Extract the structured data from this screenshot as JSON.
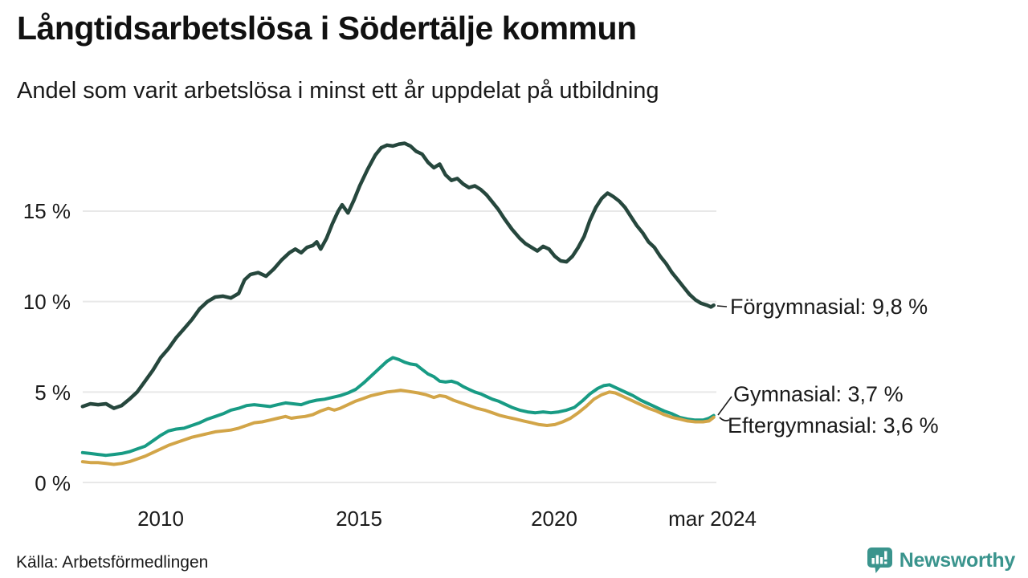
{
  "header": {
    "title": "Långtidsarbetslösa i Södertälje kommun",
    "subtitle": "Andel som varit arbetslösa i minst ett år uppdelat på utbildning"
  },
  "footer": {
    "source": "Källa: Arbetsförmedlingen",
    "brand": "Newsworthy"
  },
  "colors": {
    "forgymnasial": "#26473d",
    "gymnasial": "#189b84",
    "eftergymnasial": "#d2a548",
    "grid": "#e8e8e8",
    "text": "#1a1a1a",
    "brand_teal": "#3a948d"
  },
  "chart_data": {
    "type": "line",
    "title": "Långtidsarbetslösa i Södertälje kommun",
    "subtitle": "Andel som varit arbetslösa i minst ett år uppdelat på utbildning",
    "xlabel": "",
    "ylabel": "",
    "x_unit": "year (decimal), ends mars 2024",
    "xlim": [
      2008.0,
      2024.25
    ],
    "ylim": [
      0,
      19
    ],
    "grid": "horizontal-only",
    "legend_position": "end-of-line labels, right side",
    "yticks": [
      {
        "value": 0,
        "label": "0 %"
      },
      {
        "value": 5,
        "label": "5 %"
      },
      {
        "value": 10,
        "label": "10 %"
      },
      {
        "value": 15,
        "label": "15 %"
      }
    ],
    "xticks": [
      {
        "value": 2010,
        "label": "2010"
      },
      {
        "value": 2015,
        "label": "2015"
      },
      {
        "value": 2020,
        "label": "2020"
      },
      {
        "value": 2024.17,
        "label": "mar 2024"
      }
    ],
    "series": [
      {
        "name": "Förgymnasial",
        "end_label": "Förgymnasial: 9,8 %",
        "end_value": "9,8 %",
        "color_key": "forgymnasial",
        "width": 4.5,
        "points": [
          [
            2008.0,
            4.2
          ],
          [
            2008.2,
            4.35
          ],
          [
            2008.4,
            4.3
          ],
          [
            2008.6,
            4.35
          ],
          [
            2008.8,
            4.1
          ],
          [
            2009.0,
            4.25
          ],
          [
            2009.2,
            4.6
          ],
          [
            2009.4,
            5.0
          ],
          [
            2009.6,
            5.6
          ],
          [
            2009.8,
            6.2
          ],
          [
            2010.0,
            6.9
          ],
          [
            2010.2,
            7.4
          ],
          [
            2010.4,
            8.0
          ],
          [
            2010.6,
            8.5
          ],
          [
            2010.8,
            9.0
          ],
          [
            2011.0,
            9.6
          ],
          [
            2011.2,
            10.0
          ],
          [
            2011.4,
            10.25
          ],
          [
            2011.6,
            10.3
          ],
          [
            2011.8,
            10.2
          ],
          [
            2012.0,
            10.45
          ],
          [
            2012.15,
            11.2
          ],
          [
            2012.3,
            11.5
          ],
          [
            2012.5,
            11.6
          ],
          [
            2012.7,
            11.4
          ],
          [
            2012.9,
            11.8
          ],
          [
            2013.1,
            12.3
          ],
          [
            2013.3,
            12.7
          ],
          [
            2013.45,
            12.9
          ],
          [
            2013.6,
            12.7
          ],
          [
            2013.75,
            13.0
          ],
          [
            2013.9,
            13.1
          ],
          [
            2014.0,
            13.3
          ],
          [
            2014.1,
            12.9
          ],
          [
            2014.25,
            13.5
          ],
          [
            2014.4,
            14.3
          ],
          [
            2014.55,
            15.0
          ],
          [
            2014.65,
            15.35
          ],
          [
            2014.8,
            14.9
          ],
          [
            2014.95,
            15.6
          ],
          [
            2015.1,
            16.4
          ],
          [
            2015.3,
            17.3
          ],
          [
            2015.5,
            18.1
          ],
          [
            2015.65,
            18.5
          ],
          [
            2015.8,
            18.65
          ],
          [
            2015.95,
            18.6
          ],
          [
            2016.1,
            18.7
          ],
          [
            2016.25,
            18.75
          ],
          [
            2016.4,
            18.6
          ],
          [
            2016.55,
            18.3
          ],
          [
            2016.7,
            18.15
          ],
          [
            2016.85,
            17.7
          ],
          [
            2017.0,
            17.4
          ],
          [
            2017.15,
            17.6
          ],
          [
            2017.3,
            17.0
          ],
          [
            2017.45,
            16.7
          ],
          [
            2017.6,
            16.8
          ],
          [
            2017.75,
            16.5
          ],
          [
            2017.9,
            16.3
          ],
          [
            2018.05,
            16.4
          ],
          [
            2018.2,
            16.2
          ],
          [
            2018.35,
            15.9
          ],
          [
            2018.5,
            15.5
          ],
          [
            2018.65,
            15.1
          ],
          [
            2018.8,
            14.6
          ],
          [
            2019.0,
            14.0
          ],
          [
            2019.2,
            13.5
          ],
          [
            2019.35,
            13.2
          ],
          [
            2019.5,
            13.0
          ],
          [
            2019.65,
            12.8
          ],
          [
            2019.8,
            13.05
          ],
          [
            2019.95,
            12.9
          ],
          [
            2020.1,
            12.5
          ],
          [
            2020.25,
            12.25
          ],
          [
            2020.4,
            12.2
          ],
          [
            2020.55,
            12.5
          ],
          [
            2020.7,
            13.0
          ],
          [
            2020.85,
            13.6
          ],
          [
            2021.0,
            14.5
          ],
          [
            2021.15,
            15.2
          ],
          [
            2021.3,
            15.7
          ],
          [
            2021.45,
            16.0
          ],
          [
            2021.6,
            15.8
          ],
          [
            2021.75,
            15.55
          ],
          [
            2021.9,
            15.2
          ],
          [
            2022.05,
            14.7
          ],
          [
            2022.2,
            14.2
          ],
          [
            2022.35,
            13.8
          ],
          [
            2022.5,
            13.3
          ],
          [
            2022.65,
            13.0
          ],
          [
            2022.8,
            12.5
          ],
          [
            2022.95,
            12.1
          ],
          [
            2023.1,
            11.6
          ],
          [
            2023.25,
            11.2
          ],
          [
            2023.4,
            10.8
          ],
          [
            2023.55,
            10.4
          ],
          [
            2023.7,
            10.1
          ],
          [
            2023.85,
            9.9
          ],
          [
            2024.0,
            9.8
          ],
          [
            2024.1,
            9.7
          ],
          [
            2024.17,
            9.8
          ]
        ]
      },
      {
        "name": "Gymnasial",
        "end_label": "Gymnasial: 3,7 %",
        "end_value": "3,7 %",
        "color_key": "gymnasial",
        "width": 4,
        "points": [
          [
            2008.0,
            1.65
          ],
          [
            2008.2,
            1.6
          ],
          [
            2008.4,
            1.55
          ],
          [
            2008.6,
            1.5
          ],
          [
            2008.8,
            1.55
          ],
          [
            2009.0,
            1.6
          ],
          [
            2009.2,
            1.7
          ],
          [
            2009.4,
            1.85
          ],
          [
            2009.6,
            2.0
          ],
          [
            2009.8,
            2.3
          ],
          [
            2010.0,
            2.6
          ],
          [
            2010.2,
            2.85
          ],
          [
            2010.4,
            2.95
          ],
          [
            2010.6,
            3.0
          ],
          [
            2010.8,
            3.15
          ],
          [
            2011.0,
            3.3
          ],
          [
            2011.2,
            3.5
          ],
          [
            2011.4,
            3.65
          ],
          [
            2011.6,
            3.8
          ],
          [
            2011.8,
            4.0
          ],
          [
            2012.0,
            4.1
          ],
          [
            2012.2,
            4.25
          ],
          [
            2012.4,
            4.3
          ],
          [
            2012.6,
            4.25
          ],
          [
            2012.8,
            4.2
          ],
          [
            2013.0,
            4.3
          ],
          [
            2013.2,
            4.4
          ],
          [
            2013.4,
            4.35
          ],
          [
            2013.6,
            4.3
          ],
          [
            2013.8,
            4.45
          ],
          [
            2014.0,
            4.55
          ],
          [
            2014.2,
            4.6
          ],
          [
            2014.4,
            4.7
          ],
          [
            2014.6,
            4.8
          ],
          [
            2014.8,
            4.95
          ],
          [
            2015.0,
            5.15
          ],
          [
            2015.2,
            5.5
          ],
          [
            2015.4,
            5.9
          ],
          [
            2015.6,
            6.3
          ],
          [
            2015.8,
            6.7
          ],
          [
            2015.95,
            6.9
          ],
          [
            2016.1,
            6.8
          ],
          [
            2016.25,
            6.65
          ],
          [
            2016.4,
            6.55
          ],
          [
            2016.55,
            6.5
          ],
          [
            2016.7,
            6.25
          ],
          [
            2016.85,
            6.0
          ],
          [
            2017.0,
            5.85
          ],
          [
            2017.15,
            5.6
          ],
          [
            2017.3,
            5.55
          ],
          [
            2017.45,
            5.6
          ],
          [
            2017.6,
            5.5
          ],
          [
            2017.75,
            5.3
          ],
          [
            2017.9,
            5.15
          ],
          [
            2018.05,
            5.0
          ],
          [
            2018.2,
            4.9
          ],
          [
            2018.35,
            4.75
          ],
          [
            2018.5,
            4.6
          ],
          [
            2018.65,
            4.5
          ],
          [
            2018.8,
            4.35
          ],
          [
            2019.0,
            4.15
          ],
          [
            2019.2,
            4.0
          ],
          [
            2019.4,
            3.9
          ],
          [
            2019.6,
            3.85
          ],
          [
            2019.8,
            3.9
          ],
          [
            2020.0,
            3.85
          ],
          [
            2020.2,
            3.9
          ],
          [
            2020.4,
            4.0
          ],
          [
            2020.6,
            4.15
          ],
          [
            2020.8,
            4.5
          ],
          [
            2021.0,
            4.9
          ],
          [
            2021.2,
            5.2
          ],
          [
            2021.35,
            5.35
          ],
          [
            2021.5,
            5.4
          ],
          [
            2021.65,
            5.25
          ],
          [
            2021.8,
            5.1
          ],
          [
            2021.95,
            4.95
          ],
          [
            2022.1,
            4.8
          ],
          [
            2022.3,
            4.55
          ],
          [
            2022.5,
            4.35
          ],
          [
            2022.7,
            4.15
          ],
          [
            2022.9,
            3.95
          ],
          [
            2023.1,
            3.8
          ],
          [
            2023.3,
            3.6
          ],
          [
            2023.5,
            3.5
          ],
          [
            2023.7,
            3.45
          ],
          [
            2023.9,
            3.45
          ],
          [
            2024.05,
            3.55
          ],
          [
            2024.17,
            3.7
          ]
        ]
      },
      {
        "name": "Eftergymnasial",
        "end_label": "Eftergymnasial: 3,6 %",
        "end_value": "3,6 %",
        "color_key": "eftergymnasial",
        "width": 4,
        "points": [
          [
            2008.0,
            1.15
          ],
          [
            2008.2,
            1.1
          ],
          [
            2008.4,
            1.1
          ],
          [
            2008.6,
            1.05
          ],
          [
            2008.8,
            1.0
          ],
          [
            2009.0,
            1.05
          ],
          [
            2009.2,
            1.15
          ],
          [
            2009.4,
            1.3
          ],
          [
            2009.6,
            1.45
          ],
          [
            2009.8,
            1.65
          ],
          [
            2010.0,
            1.85
          ],
          [
            2010.2,
            2.05
          ],
          [
            2010.4,
            2.2
          ],
          [
            2010.6,
            2.35
          ],
          [
            2010.8,
            2.5
          ],
          [
            2011.0,
            2.6
          ],
          [
            2011.2,
            2.7
          ],
          [
            2011.4,
            2.8
          ],
          [
            2011.6,
            2.85
          ],
          [
            2011.8,
            2.9
          ],
          [
            2012.0,
            3.0
          ],
          [
            2012.2,
            3.15
          ],
          [
            2012.4,
            3.3
          ],
          [
            2012.6,
            3.35
          ],
          [
            2012.8,
            3.45
          ],
          [
            2013.0,
            3.55
          ],
          [
            2013.2,
            3.65
          ],
          [
            2013.35,
            3.55
          ],
          [
            2013.5,
            3.6
          ],
          [
            2013.7,
            3.65
          ],
          [
            2013.9,
            3.75
          ],
          [
            2014.1,
            3.95
          ],
          [
            2014.3,
            4.1
          ],
          [
            2014.45,
            4.0
          ],
          [
            2014.6,
            4.1
          ],
          [
            2014.8,
            4.3
          ],
          [
            2015.0,
            4.5
          ],
          [
            2015.2,
            4.65
          ],
          [
            2015.4,
            4.8
          ],
          [
            2015.6,
            4.9
          ],
          [
            2015.8,
            5.0
          ],
          [
            2016.0,
            5.05
          ],
          [
            2016.15,
            5.1
          ],
          [
            2016.3,
            5.05
          ],
          [
            2016.45,
            5.0
          ],
          [
            2016.6,
            4.95
          ],
          [
            2016.8,
            4.85
          ],
          [
            2017.0,
            4.7
          ],
          [
            2017.15,
            4.8
          ],
          [
            2017.3,
            4.75
          ],
          [
            2017.5,
            4.55
          ],
          [
            2017.7,
            4.4
          ],
          [
            2017.9,
            4.25
          ],
          [
            2018.1,
            4.1
          ],
          [
            2018.3,
            4.0
          ],
          [
            2018.5,
            3.85
          ],
          [
            2018.7,
            3.7
          ],
          [
            2018.9,
            3.6
          ],
          [
            2019.1,
            3.5
          ],
          [
            2019.3,
            3.4
          ],
          [
            2019.5,
            3.3
          ],
          [
            2019.7,
            3.2
          ],
          [
            2019.9,
            3.15
          ],
          [
            2020.1,
            3.2
          ],
          [
            2020.3,
            3.35
          ],
          [
            2020.5,
            3.55
          ],
          [
            2020.7,
            3.85
          ],
          [
            2020.9,
            4.2
          ],
          [
            2021.1,
            4.6
          ],
          [
            2021.3,
            4.85
          ],
          [
            2021.5,
            5.0
          ],
          [
            2021.65,
            4.95
          ],
          [
            2021.8,
            4.8
          ],
          [
            2021.95,
            4.65
          ],
          [
            2022.1,
            4.5
          ],
          [
            2022.3,
            4.3
          ],
          [
            2022.5,
            4.1
          ],
          [
            2022.7,
            3.95
          ],
          [
            2022.9,
            3.75
          ],
          [
            2023.1,
            3.6
          ],
          [
            2023.3,
            3.5
          ],
          [
            2023.5,
            3.4
          ],
          [
            2023.7,
            3.35
          ],
          [
            2023.9,
            3.35
          ],
          [
            2024.05,
            3.4
          ],
          [
            2024.17,
            3.6
          ]
        ]
      }
    ]
  }
}
